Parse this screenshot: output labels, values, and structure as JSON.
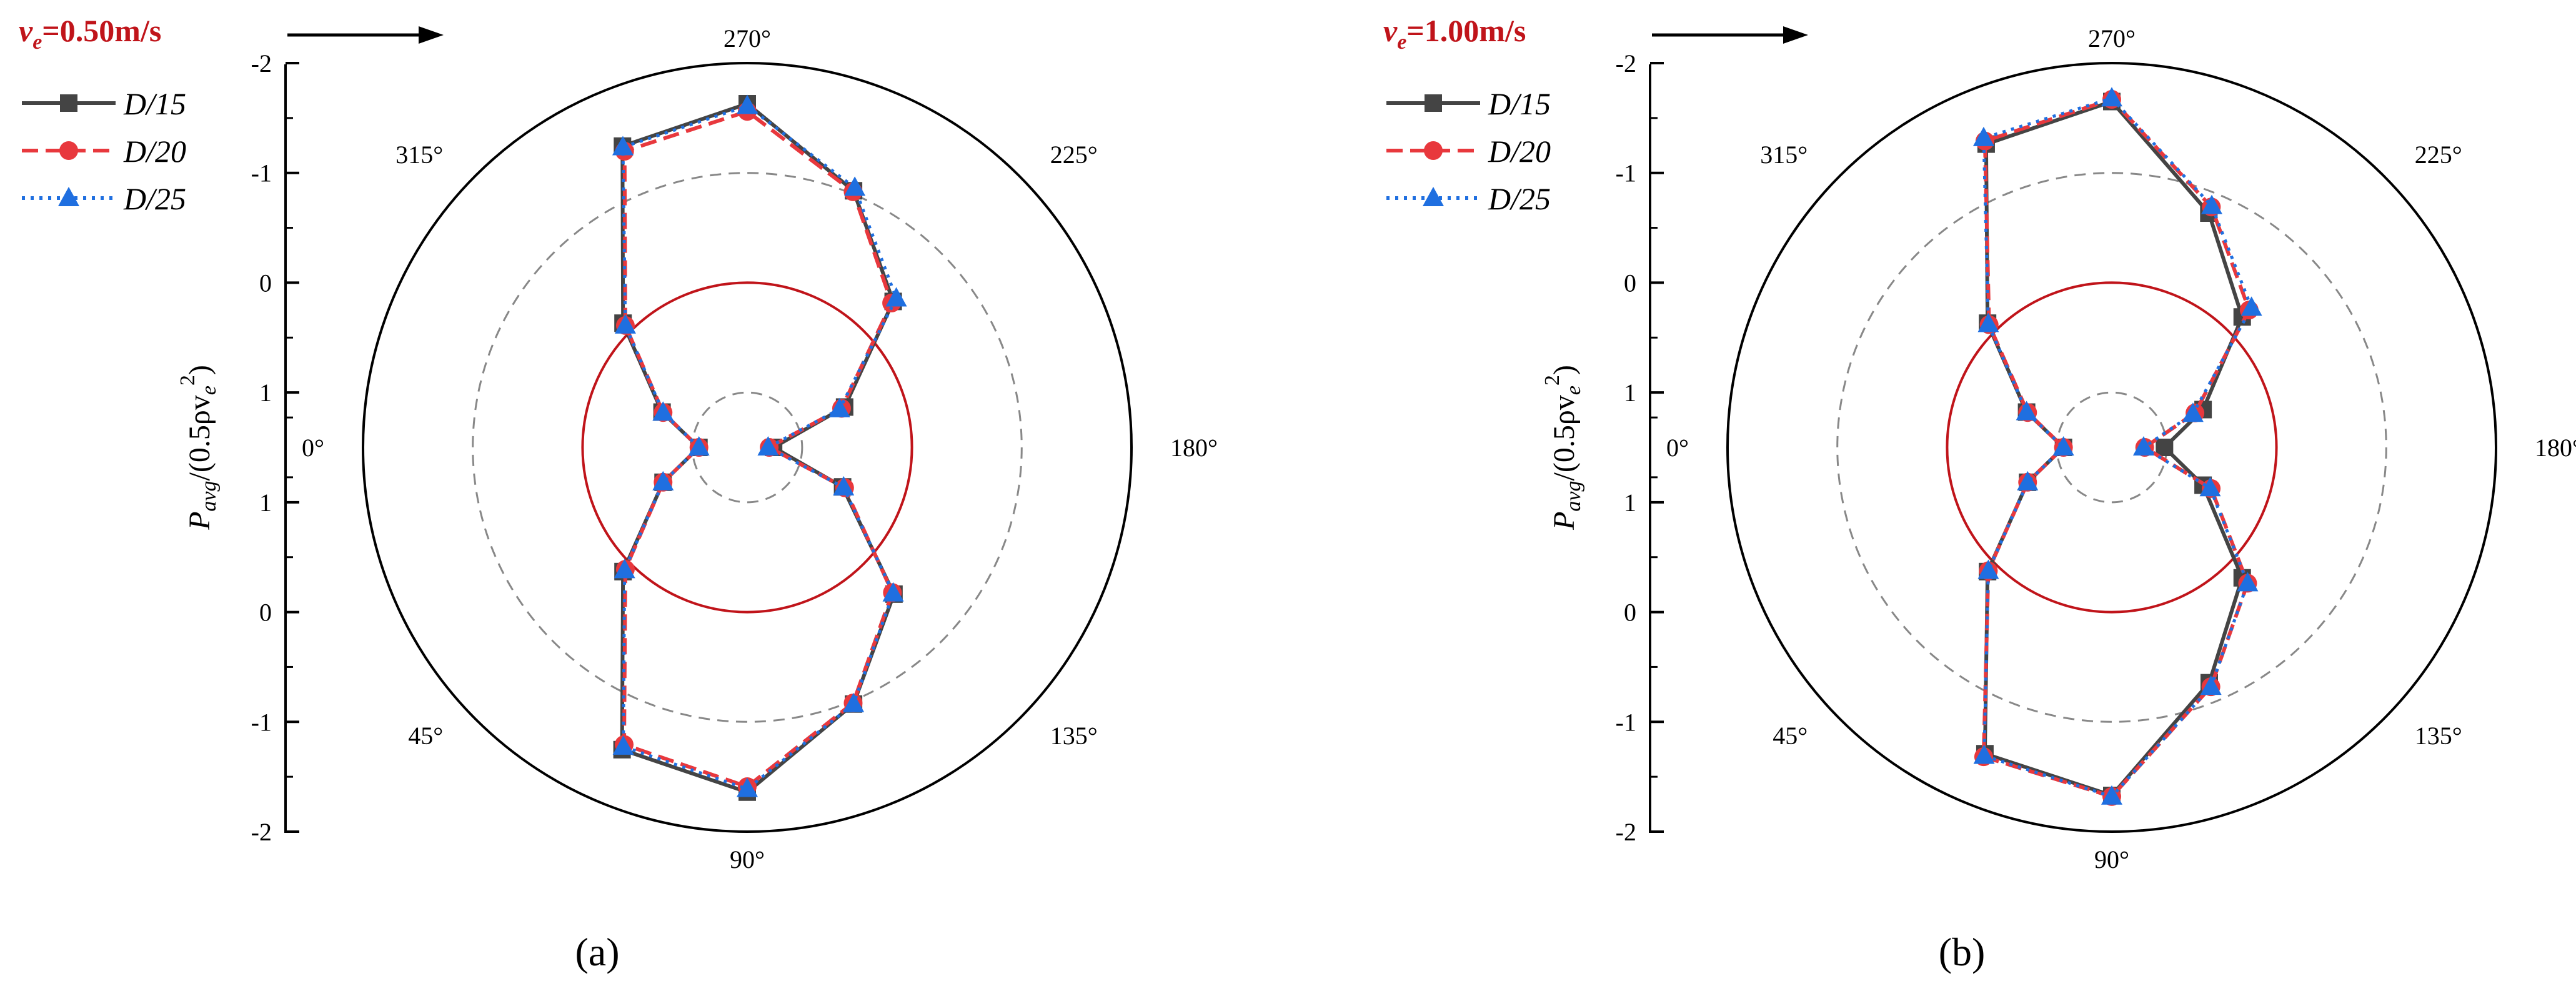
{
  "chart_data": [
    {
      "type": "polar-line",
      "panel_label": "(a)",
      "panel_letter": "a",
      "velocity_symbol": "v",
      "velocity_sub": "e",
      "velocity_value": "=0.50m/s",
      "ylabel": {
        "main": "P",
        "sub": "avg",
        "rest": "/(0.5ρv",
        "sub2": "e",
        "sup": "2",
        "close": ")"
      },
      "angle_labels": [
        "0°",
        "45°",
        "90°",
        "135°",
        "180°",
        "225°",
        "270°",
        "315°"
      ],
      "radial_ticks": [
        "-2",
        "-1",
        "0",
        "1",
        "1",
        "0",
        "-1",
        "-2"
      ],
      "radial_range": [
        -2,
        1.5
      ],
      "zero_circle_value": 0,
      "dashed_circle_values": [
        -1,
        1
      ],
      "angles_deg": [
        0,
        22.5,
        45,
        67.5,
        90,
        112.5,
        135,
        157.5,
        180,
        202.5,
        225,
        247.5,
        270,
        292.5,
        315,
        337.5
      ],
      "legend": [
        "D/15",
        "D/20",
        "D/25"
      ],
      "series": [
        {
          "name": "D/15",
          "color": "#444444",
          "marker": "square",
          "dash": "solid",
          "values": [
            1.06,
            0.67,
            -0.1,
            -1.48,
            -1.64,
            -1.03,
            -0.39,
            0.56,
            1.26,
            0.54,
            -0.38,
            -1.03,
            -1.63,
            -1.47,
            -0.1,
            0.66
          ]
        },
        {
          "name": "D/20",
          "color": "#e8383d",
          "marker": "circle",
          "dash": "dashed",
          "values": [
            1.06,
            0.67,
            -0.07,
            -1.43,
            -1.59,
            -1.02,
            -0.37,
            0.54,
            1.3,
            0.57,
            -0.36,
            -1.02,
            -1.56,
            -1.42,
            -0.07,
            0.67
          ]
        },
        {
          "name": "D/25",
          "color": "#1f6fe0",
          "marker": "triangle",
          "dash": "dotted",
          "values": [
            1.06,
            0.67,
            -0.08,
            -1.45,
            -1.61,
            -1.03,
            -0.38,
            0.55,
            1.31,
            0.59,
            -0.42,
            -1.06,
            -1.61,
            -1.46,
            -0.07,
            0.67
          ]
        }
      ]
    },
    {
      "type": "polar-line",
      "panel_label": "(b)",
      "panel_letter": "b",
      "velocity_symbol": "v",
      "velocity_sub": "e",
      "velocity_value": "=1.00m/s",
      "ylabel": {
        "main": "P",
        "sub": "avg",
        "rest": "/(0.5ρv",
        "sub2": "e",
        "sup": "2",
        "close": ")"
      },
      "angle_labels": [
        "0°",
        "45°",
        "90°",
        "135°",
        "180°",
        "225°",
        "270°",
        "315°"
      ],
      "radial_ticks": [
        "-2",
        "-1",
        "0",
        "1",
        "1",
        "0",
        "-1",
        "-2"
      ],
      "radial_range": [
        -2,
        1.5
      ],
      "zero_circle_value": 0,
      "dashed_circle_values": [
        -1,
        1
      ],
      "angles_deg": [
        0,
        22.5,
        45,
        67.5,
        90,
        112.5,
        135,
        157.5,
        180,
        202.5,
        225,
        247.5,
        270,
        292.5,
        315,
        337.5
      ],
      "legend": [
        "D/15",
        "D/20",
        "D/25"
      ],
      "series": [
        {
          "name": "D/15",
          "color": "#444444",
          "marker": "square",
          "dash": "solid",
          "values": [
            1.06,
            0.67,
            -0.1,
            -1.52,
            -1.67,
            -0.82,
            -0.18,
            0.6,
            1.02,
            0.6,
            -0.18,
            -0.81,
            -1.65,
            -1.49,
            -0.1,
            0.66
          ]
        },
        {
          "name": "D/20",
          "color": "#e8383d",
          "marker": "circle",
          "dash": "dashed",
          "values": [
            1.06,
            0.67,
            -0.09,
            -1.55,
            -1.68,
            -0.86,
            -0.25,
            0.52,
            1.2,
            0.68,
            -0.27,
            -0.87,
            -1.67,
            -1.52,
            -0.08,
            0.67
          ]
        },
        {
          "name": "D/25",
          "color": "#1f6fe0",
          "marker": "triangle",
          "dash": "dotted",
          "values": [
            1.06,
            0.67,
            -0.09,
            -1.54,
            -1.68,
            -0.86,
            -0.25,
            0.53,
            1.21,
            0.7,
            -0.3,
            -0.88,
            -1.68,
            -1.55,
            -0.09,
            0.66
          ]
        }
      ]
    }
  ]
}
